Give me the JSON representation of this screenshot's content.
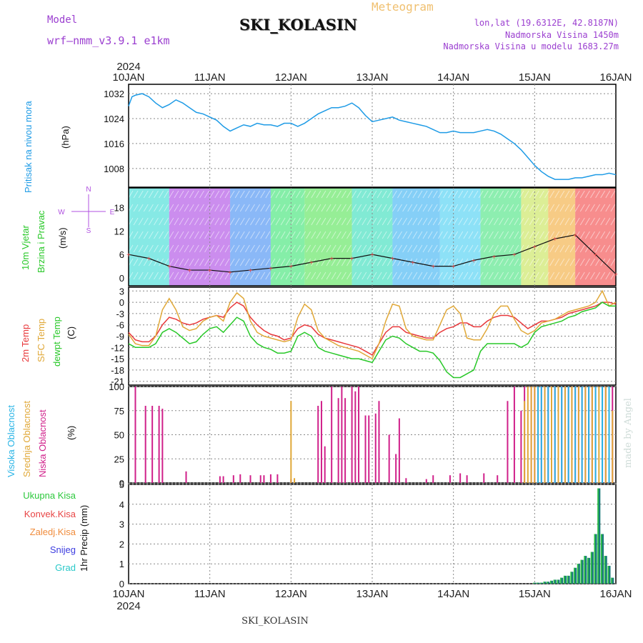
{
  "header": {
    "title": "SKI_KOLASIN",
    "meteogram": "Meteogram",
    "model_label": "Model",
    "model_name": "wrf—nmm_v3.9.1  e1km",
    "lonlat": "lon,lat (19.6312E, 42.8187N)",
    "elevation": "Nadmorska Visina 1450m",
    "model_elevation": "Nadmorska Visina u modelu 1683.27m",
    "year": "2024"
  },
  "footer": {
    "station": "SKI_KOLASIN",
    "credit": "made by Angel"
  },
  "time_axis": {
    "labels": [
      "10JAN",
      "11JAN",
      "12JAN",
      "13JAN",
      "14JAN",
      "15JAN",
      "16JAN"
    ],
    "start": "10JAN 2024 00h",
    "hours": 144
  },
  "panel_labels": {
    "pressure": [
      "Pritisak na nivou mora",
      "(hPa)"
    ],
    "wind": [
      "10m Vjetar",
      "Brzina i Pravac",
      "(m/s)"
    ],
    "wind_rose": [
      "N",
      "W",
      "E",
      "S"
    ],
    "temp": [
      "2m Temp",
      "SFC Temp",
      "dewpt Temp",
      "(C)"
    ],
    "cloud": [
      "Visoka Oblacnost",
      "Srednja Oblacnost",
      "Niska Oblacnost",
      "(%)"
    ],
    "precip": [
      "Ukupna Kisa",
      "Konvek.Kisa",
      "Zaledj.Kisa",
      "Snijeg",
      "Grad",
      "1hr Precip (mm)"
    ]
  },
  "colors": {
    "pressure": "#1e9be6",
    "temp2m": "#e8383b",
    "sfc": "#e0a838",
    "dewpt": "#28c828",
    "high_cloud": "#28b4e6",
    "mid_cloud": "#e0a838",
    "low_cloud": "#d0208a",
    "total_rain": "#2cc83c",
    "conv_rain": "#e84444",
    "frz_rain": "#f08c3c",
    "snow": "#3c3ce0",
    "hail": "#28c8c8",
    "precip_bar": "#1a7a7a"
  },
  "chart_data": [
    {
      "type": "line",
      "title": "",
      "ylabel": "(hPa)",
      "ylim": [
        1002,
        1035
      ],
      "yticks": [
        1008,
        1016,
        1024,
        1032
      ],
      "series": [
        {
          "name": "Pritisak na nivou mora",
          "x": [
            0,
            1,
            2,
            4,
            6,
            8,
            10,
            12,
            14,
            16,
            18,
            20,
            22,
            24,
            26,
            28,
            30,
            32,
            34,
            36,
            38,
            40,
            42,
            44,
            46,
            48,
            50,
            52,
            54,
            56,
            58,
            60,
            62,
            64,
            66,
            68,
            70,
            72,
            74,
            76,
            78,
            80,
            82,
            84,
            86,
            88,
            90,
            92,
            94,
            96,
            98,
            100,
            102,
            104,
            106,
            108,
            110,
            112,
            114,
            116,
            118,
            120,
            122,
            124,
            126,
            128,
            130,
            132,
            134,
            136,
            138,
            140,
            142,
            144
          ],
          "values": [
            1028,
            1031,
            1031.5,
            1032,
            1031,
            1029,
            1027.5,
            1028.5,
            1030,
            1029,
            1027.5,
            1026,
            1025.5,
            1024.5,
            1023.5,
            1021.5,
            1020,
            1021,
            1022,
            1021.5,
            1022.5,
            1022,
            1022,
            1021.5,
            1022.5,
            1022.5,
            1021.5,
            1022.5,
            1024,
            1025.5,
            1026.5,
            1027.5,
            1027.5,
            1028,
            1029,
            1027.5,
            1025,
            1023,
            1023.5,
            1024,
            1024.5,
            1023.5,
            1023,
            1022.5,
            1022,
            1021.5,
            1020.5,
            1019.5,
            1019.5,
            1020,
            1019.5,
            1019.5,
            1019.5,
            1020,
            1020.5,
            1020,
            1019,
            1017.5,
            1016,
            1014,
            1011.5,
            1009,
            1007,
            1005.5,
            1004.5,
            1004.5,
            1004.5,
            1005,
            1005,
            1005.5,
            1006,
            1006,
            1006.5,
            1006
          ]
        }
      ]
    },
    {
      "type": "line",
      "title": "",
      "ylabel": "(m/s)",
      "ylim": [
        -2,
        23
      ],
      "yticks": [
        0,
        6,
        12,
        18
      ],
      "series": [
        {
          "name": "Brzina",
          "x": [
            0,
            6,
            12,
            18,
            24,
            30,
            36,
            42,
            48,
            54,
            60,
            66,
            72,
            78,
            84,
            90,
            96,
            102,
            108,
            114,
            120,
            126,
            132,
            138,
            144
          ],
          "values": [
            6,
            5,
            3,
            2,
            2,
            1.5,
            2,
            2.5,
            3,
            4,
            5,
            5,
            6,
            5,
            4,
            3,
            3,
            4.5,
            5.5,
            6,
            8,
            10,
            11,
            6,
            1
          ]
        }
      ]
    },
    {
      "type": "line",
      "title": "",
      "ylabel": "(C)",
      "ylim": [
        -22,
        4
      ],
      "yticks": [
        3,
        0,
        -3,
        -6,
        -9,
        -12,
        -15,
        -18,
        -21
      ],
      "x": [
        0,
        2,
        4,
        6,
        8,
        10,
        12,
        14,
        16,
        18,
        20,
        22,
        24,
        26,
        28,
        30,
        32,
        34,
        36,
        38,
        40,
        42,
        44,
        46,
        48,
        50,
        52,
        54,
        56,
        58,
        60,
        62,
        64,
        66,
        68,
        70,
        72,
        74,
        76,
        78,
        80,
        82,
        84,
        86,
        88,
        90,
        92,
        94,
        96,
        98,
        100,
        102,
        104,
        106,
        108,
        110,
        112,
        114,
        116,
        118,
        120,
        122,
        124,
        126,
        128,
        130,
        132,
        134,
        136,
        138,
        140,
        142,
        144
      ],
      "series": [
        {
          "name": "2m Temp",
          "values": [
            -8,
            -10,
            -10.5,
            -10.5,
            -9,
            -6,
            -4,
            -4.5,
            -5.5,
            -6,
            -5.5,
            -4.5,
            -4,
            -3.5,
            -4,
            -1.5,
            0,
            -1,
            -4,
            -6,
            -7.5,
            -8.5,
            -9,
            -10,
            -9.5,
            -7,
            -6,
            -6.5,
            -8.5,
            -9.5,
            -10,
            -10.5,
            -11,
            -11.5,
            -12,
            -13,
            -14,
            -11,
            -8,
            -6.5,
            -6.5,
            -8,
            -8.5,
            -9,
            -9.5,
            -9.5,
            -8,
            -7,
            -6.5,
            -5.5,
            -5.5,
            -6.5,
            -6.5,
            -5,
            -4,
            -3.5,
            -3.5,
            -4,
            -5.5,
            -7,
            -6,
            -5,
            -5,
            -4.5,
            -4,
            -3,
            -2.5,
            -2,
            -1.5,
            -1,
            0,
            0,
            -0.5
          ]
        },
        {
          "name": "SFC Temp",
          "values": [
            -8.5,
            -11,
            -11.5,
            -11.5,
            -9,
            -2,
            1,
            -2,
            -6.5,
            -7.5,
            -7,
            -5,
            -4,
            -3.5,
            -5,
            0,
            2.5,
            1,
            -5,
            -8,
            -9,
            -9.5,
            -10,
            -10.5,
            -10,
            -4,
            -0.5,
            -2,
            -7.5,
            -9.5,
            -10.5,
            -11.5,
            -12,
            -12.5,
            -13,
            -14,
            -15,
            -11,
            -5,
            -0.5,
            -1,
            -7,
            -9,
            -9.5,
            -10,
            -10,
            -6,
            -2,
            -1,
            -3,
            -9.5,
            -10,
            -10,
            -7,
            -3,
            -1,
            -1,
            -4.5,
            -7.5,
            -8.5,
            -7.5,
            -5.5,
            -5,
            -4.5,
            -3.5,
            -2.5,
            -2,
            -1.5,
            -1,
            0,
            3,
            -1,
            0
          ]
        },
        {
          "name": "dewpt Temp",
          "values": [
            -11,
            -12,
            -12,
            -12,
            -11,
            -8,
            -7,
            -8,
            -9.5,
            -11,
            -10.5,
            -8.5,
            -7,
            -6.5,
            -8,
            -6,
            -4,
            -5,
            -9,
            -11,
            -12,
            -12.5,
            -13.5,
            -13.5,
            -13,
            -9,
            -8,
            -9,
            -12,
            -13,
            -13.5,
            -14,
            -14.5,
            -15,
            -15,
            -15.5,
            -16,
            -13,
            -10,
            -9,
            -9.5,
            -11,
            -12,
            -13,
            -13,
            -13.5,
            -15.5,
            -18.5,
            -20,
            -20,
            -19,
            -18,
            -13,
            -11,
            -11,
            -11,
            -11,
            -11,
            -12,
            -11,
            -8,
            -6.5,
            -6,
            -5.5,
            -5,
            -4,
            -3.5,
            -2.5,
            -2,
            -1.5,
            0,
            -1,
            -1
          ]
        }
      ]
    },
    {
      "type": "bar",
      "title": "",
      "ylabel": "(%)",
      "ylim": [
        0,
        100
      ],
      "yticks": [
        0,
        25,
        50,
        75,
        100
      ],
      "series": [
        {
          "name": "Niska Oblacnost",
          "x": [
            2,
            5,
            7,
            9,
            10,
            17,
            27,
            28,
            31,
            33,
            36,
            39,
            40,
            42,
            44,
            48,
            56,
            57,
            58,
            60,
            62,
            63,
            64,
            66,
            67,
            68,
            70,
            71,
            73,
            74,
            77,
            79,
            80,
            82,
            88,
            90,
            95,
            98,
            100,
            105,
            109,
            112,
            114,
            116,
            117,
            119,
            120,
            121,
            122,
            123,
            124,
            125,
            126,
            127,
            128,
            129,
            130,
            131,
            132,
            133,
            134,
            135,
            136,
            137,
            138,
            140,
            141,
            143
          ],
          "values": [
            100,
            80,
            80,
            80,
            77,
            12,
            7,
            7,
            8,
            9,
            8,
            8,
            8,
            9,
            9,
            4,
            80,
            85,
            38,
            100,
            88,
            100,
            88,
            100,
            95,
            100,
            70,
            70,
            72,
            85,
            50,
            30,
            67,
            5,
            4,
            8,
            8,
            10,
            8,
            10,
            8,
            85,
            100,
            75,
            100,
            100,
            100,
            100,
            100,
            100,
            100,
            100,
            100,
            100,
            100,
            100,
            100,
            100,
            100,
            100,
            100,
            100,
            100,
            100,
            100,
            100,
            100,
            100
          ]
        },
        {
          "name": "Srednja Oblacnost",
          "x": [
            48,
            49,
            117,
            118,
            119,
            120,
            121,
            123,
            125,
            127,
            129,
            131,
            133,
            135,
            137,
            139,
            141,
            142,
            143
          ],
          "values": [
            85,
            5,
            85,
            100,
            100,
            100,
            100,
            100,
            100,
            100,
            100,
            100,
            100,
            100,
            100,
            100,
            100,
            75,
            75
          ]
        },
        {
          "name": "Visoka Oblacnost",
          "x": [
            121,
            122,
            124,
            126,
            128,
            130,
            132,
            134,
            136,
            138,
            140,
            142
          ],
          "values": [
            100,
            100,
            100,
            100,
            100,
            100,
            100,
            100,
            100,
            100,
            100,
            100
          ]
        }
      ]
    },
    {
      "type": "bar",
      "title": "",
      "ylabel": "1hr Precip (mm)",
      "ylim": [
        0,
        5
      ],
      "yticks": [
        0,
        1,
        2,
        3,
        4,
        5
      ],
      "series": [
        {
          "name": "Ukupna Kisa",
          "x": [
            120,
            121,
            122,
            123,
            124,
            125,
            126,
            127,
            128,
            129,
            130,
            131,
            132,
            133,
            134,
            135,
            136,
            137,
            138,
            139,
            140,
            141,
            142,
            143
          ],
          "values": [
            0.05,
            0.05,
            0.05,
            0.1,
            0.1,
            0.15,
            0.2,
            0.2,
            0.3,
            0.4,
            0.4,
            0.6,
            0.8,
            1.0,
            1.2,
            1.4,
            1.3,
            1.6,
            2.5,
            4.8,
            2.5,
            1.4,
            0.9,
            0.3
          ]
        }
      ]
    }
  ]
}
